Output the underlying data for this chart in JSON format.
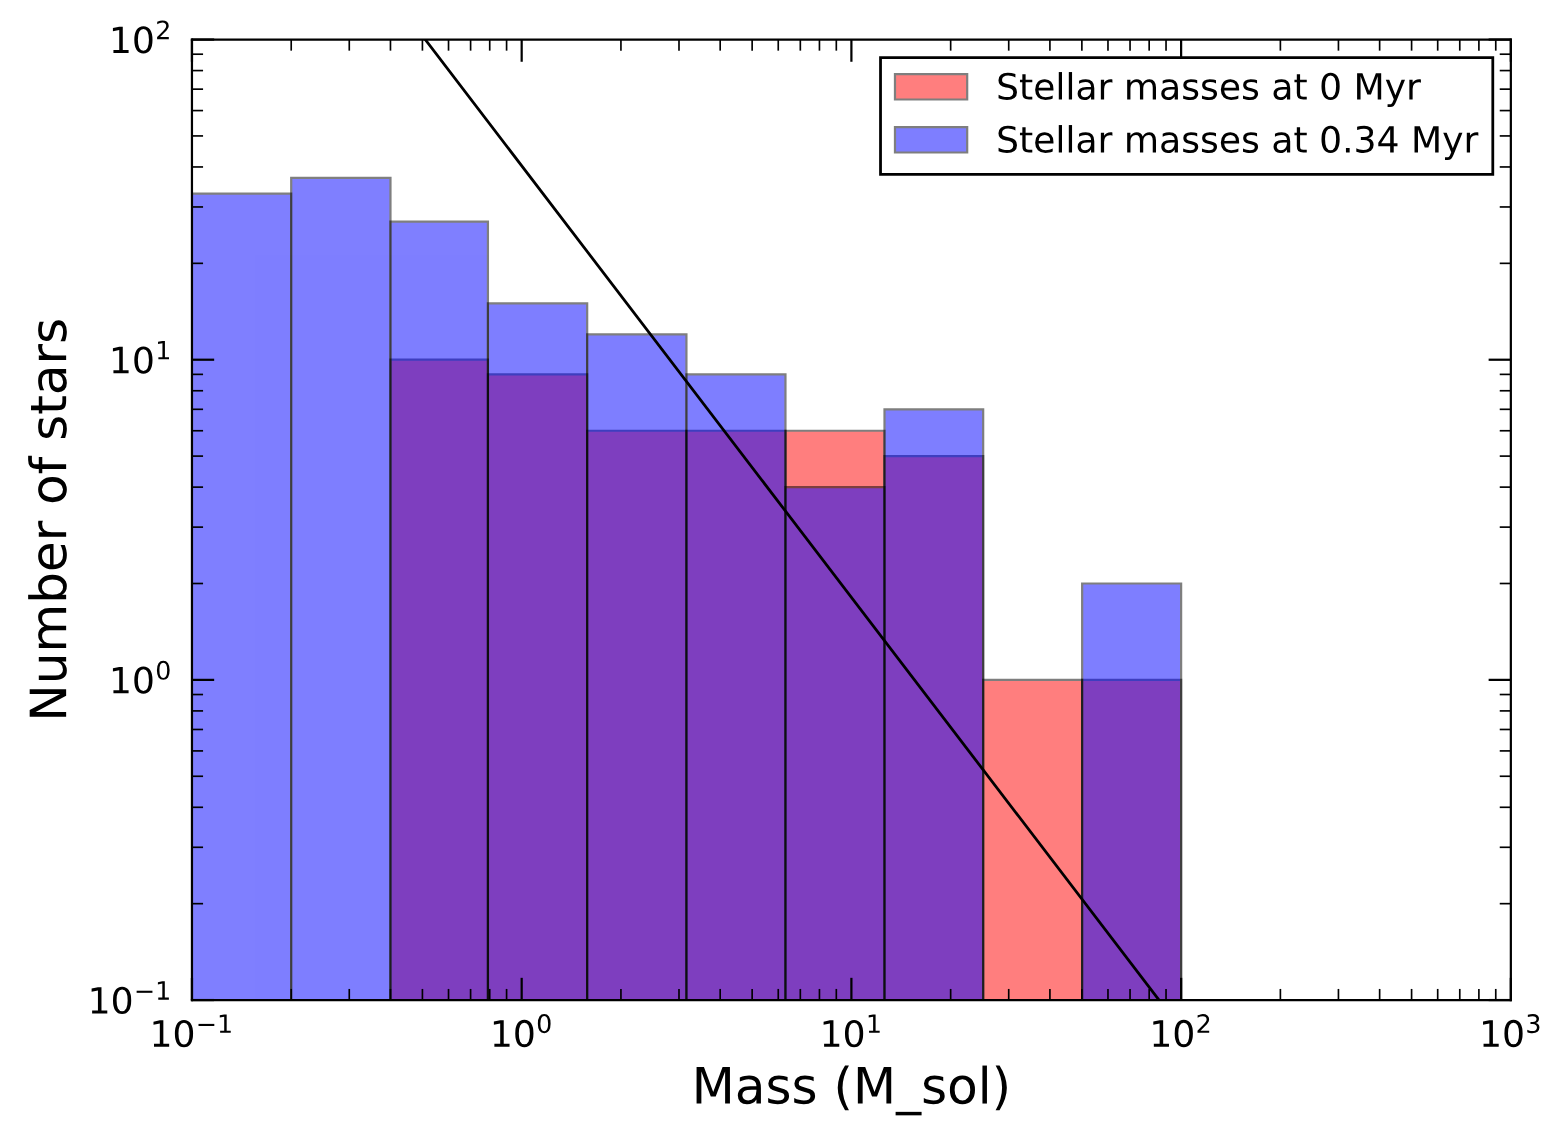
{
  "chart_data": {
    "type": "histogram",
    "xlabel": "Mass (M_sol)",
    "ylabel": "Number of stars",
    "log": "xy",
    "xlim": [
      0.1,
      1000
    ],
    "ylim": [
      0.1,
      100
    ],
    "xticks": [
      {
        "value": 0.1,
        "label": "10$^{−1}$"
      },
      {
        "value": 1,
        "label": "10$^{0}$"
      },
      {
        "value": 10,
        "label": "10$^{1}$"
      },
      {
        "value": 100,
        "label": "10$^{2}$"
      },
      {
        "value": 1000,
        "label": "10$^{3}$"
      }
    ],
    "yticks": [
      {
        "value": 0.1,
        "label": "10$^{−1}$"
      },
      {
        "value": 1,
        "label": "10$^{0}$"
      },
      {
        "value": 10,
        "label": "10$^{1}$"
      },
      {
        "value": 100,
        "label": "10$^{2}$"
      }
    ],
    "bins": [
      0.1,
      0.2,
      0.4,
      0.79,
      1.58,
      3.16,
      6.31,
      12.6,
      25.1,
      50.1,
      100
    ],
    "series": [
      {
        "name": "Stellar masses at 0 Myr",
        "color": "#ff0000",
        "values": [
          null,
          null,
          10,
          9,
          6,
          6,
          6,
          5,
          1,
          1
        ]
      },
      {
        "name": "Stellar masses at 0.34 Myr",
        "color": "#0000ff",
        "values": [
          33,
          37,
          27,
          15,
          12,
          9,
          4,
          7,
          null,
          2
        ]
      },
      {
        "type": "line",
        "color": "#000000",
        "x": [
          0.51,
          85.7
        ],
        "values": [
          100,
          0.1
        ]
      }
    ],
    "legend": "top right",
    "grid": false
  }
}
